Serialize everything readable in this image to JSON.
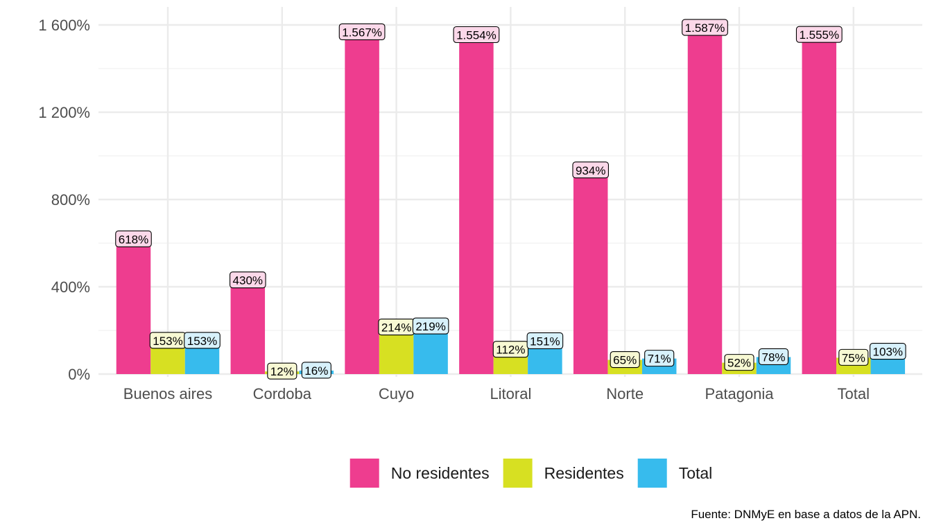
{
  "chart_data": {
    "type": "bar",
    "categories": [
      "Buenos aires",
      "Cordoba",
      "Cuyo",
      "Litoral",
      "Norte",
      "Patagonia",
      "Total"
    ],
    "series": [
      {
        "name": "No residentes",
        "color": "#EE3D8F",
        "label_bg": "#FBD8E9",
        "values": [
          618,
          430,
          1567,
          1554,
          934,
          1587,
          1555
        ],
        "labels": [
          "618%",
          "430%",
          "1.567%",
          "1.554%",
          "934%",
          "1.587%",
          "1.555%"
        ]
      },
      {
        "name": "Residentes",
        "color": "#D7E022",
        "label_bg": "#F7F8D3",
        "values": [
          153,
          12,
          214,
          112,
          65,
          52,
          75
        ],
        "labels": [
          "153%",
          "12%",
          "214%",
          "112%",
          "65%",
          "52%",
          "75%"
        ]
      },
      {
        "name": "Total",
        "color": "#37BBED",
        "label_bg": "#D7F1FB",
        "values": [
          153,
          16,
          219,
          151,
          71,
          78,
          103
        ],
        "labels": [
          "153%",
          "16%",
          "219%",
          "151%",
          "71%",
          "78%",
          "103%"
        ]
      }
    ],
    "ylim": [
      0,
      1600
    ],
    "yticks": [
      0,
      400,
      800,
      1200,
      1600
    ],
    "ytick_labels": [
      "0%",
      "400%",
      "800%",
      "1 200%",
      "1 600%"
    ],
    "grid": true,
    "legend_position": "bottom",
    "xlabel": "",
    "ylabel": ""
  },
  "caption": "Fuente: DNMyE en base a datos de la APN."
}
